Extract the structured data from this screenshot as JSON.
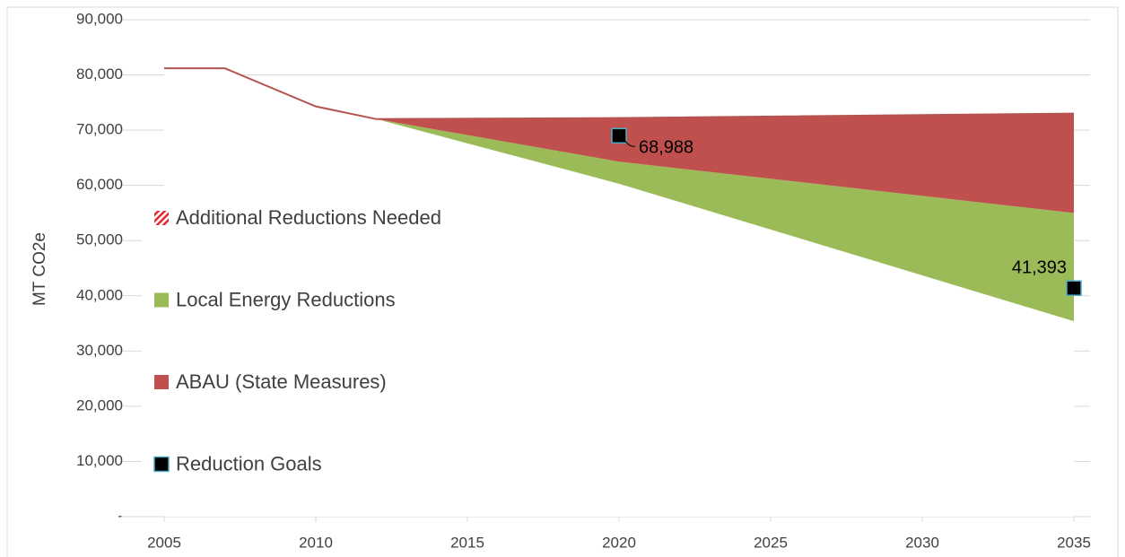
{
  "chart_data": {
    "type": "stacked_area",
    "ylabel": "MT CO2e",
    "x": [
      2005,
      2007,
      2010,
      2012,
      2020,
      2035
    ],
    "xlim": [
      2005,
      2035
    ],
    "xticks": [
      2005,
      2010,
      2015,
      2020,
      2025,
      2030,
      2035
    ],
    "ylim": [
      0,
      90000
    ],
    "yticks": [
      {
        "value": 0,
        "label": "-"
      },
      {
        "value": 10000,
        "label": "10,000"
      },
      {
        "value": 20000,
        "label": "20,000"
      },
      {
        "value": 30000,
        "label": "30,000"
      },
      {
        "value": 40000,
        "label": "40,000"
      },
      {
        "value": 50000,
        "label": "50,000"
      },
      {
        "value": 60000,
        "label": "60,000"
      },
      {
        "value": 70000,
        "label": "70,000"
      },
      {
        "value": 80000,
        "label": "80,000"
      },
      {
        "value": 90000,
        "label": "90,000"
      }
    ],
    "grid": true,
    "line_color": "#b5544f",
    "series": [
      {
        "color": "#ffffff",
        "values": [
          81200,
          81200,
          74300,
          72000,
          60300,
          35400
        ]
      },
      {
        "name": "Local Energy Reductions",
        "color": "#9bbb59",
        "values": [
          0,
          0,
          0,
          0,
          4000,
          19600
        ]
      },
      {
        "name": "ABAU (State Measures)",
        "color": "#c0504d",
        "values": [
          0,
          0,
          0,
          0,
          7900,
          18000
        ]
      }
    ],
    "legend": [
      {
        "name": "Additional Reductions Needed",
        "color": "#e8262b",
        "pattern": "hatch"
      },
      {
        "name": "Local Energy Reductions",
        "color": "#9bbb59"
      },
      {
        "name": "ABAU (State Measures)",
        "color": "#c0504d"
      },
      {
        "name": "Reduction Goals",
        "color": "#000000",
        "marker": "square"
      }
    ],
    "goals": {
      "name": "Reduction Goals",
      "color": "#000000",
      "edge": "#4bacc6",
      "x": [
        2020,
        2035
      ],
      "values": [
        68988,
        41393
      ],
      "value_labels": [
        "68,988",
        "41,393"
      ]
    }
  }
}
